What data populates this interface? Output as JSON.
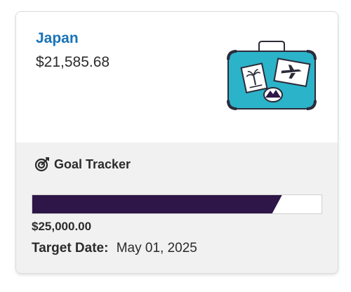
{
  "goal": {
    "name": "Japan",
    "amount": "$21,585.68"
  },
  "tracker": {
    "title": "Goal Tracker",
    "icon": "target-icon",
    "progress_fraction": 0.8634,
    "target_amount": "$25,000.00",
    "target_date_label": "Target Date:",
    "target_date_value": "May 01, 2025"
  },
  "colors": {
    "link": "#1a73b8",
    "progress_fill": "#2e1648",
    "suitcase": "#2bb3c9",
    "section_bg": "#f1f1f1"
  }
}
